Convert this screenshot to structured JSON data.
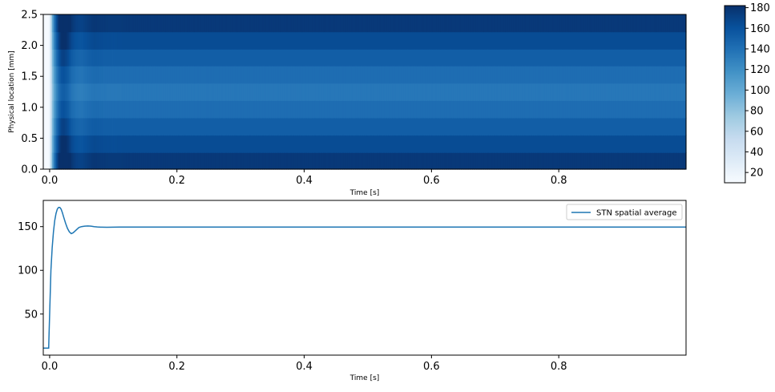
{
  "chart_data": [
    {
      "type": "heatmap",
      "title": "",
      "xlabel": "Time [s]",
      "ylabel": "Physical location [mm]",
      "xlim": [
        -0.01,
        1.0
      ],
      "ylim": [
        0.0,
        2.5
      ],
      "xticks": [
        0.0,
        0.2,
        0.4,
        0.6,
        0.8
      ],
      "xtick_labels": [
        "0.0",
        "0.2",
        "0.4",
        "0.6",
        "0.8"
      ],
      "yticks": [
        0.0,
        0.5,
        1.0,
        1.5,
        2.0,
        2.5
      ],
      "ytick_labels": [
        "0.0",
        "0.5",
        "1.0",
        "1.5",
        "2.0",
        "2.5"
      ],
      "colormap": "Blues",
      "colorbar": {
        "min": 10,
        "max": 182,
        "ticks": [
          20,
          40,
          60,
          80,
          100,
          120,
          140,
          160,
          180
        ],
        "tick_labels": [
          "20",
          "40",
          "60",
          "80",
          "100",
          "120",
          "140",
          "160",
          "180"
        ]
      },
      "rows": {
        "y_edges": [
          0.0,
          0.27,
          0.55,
          0.83,
          1.11,
          1.39,
          1.67,
          1.94,
          2.22,
          2.5
        ],
        "steady_values": [
          176,
          164,
          152,
          142,
          135,
          142,
          152,
          164,
          176
        ]
      },
      "time_profile": {
        "t": [
          -0.01,
          -0.002,
          0.0,
          0.002,
          0.004,
          0.007,
          0.01,
          0.014,
          0.018,
          0.022,
          0.028,
          0.035,
          0.042,
          0.05,
          0.06,
          0.07,
          0.085,
          0.1,
          0.12,
          1.0
        ],
        "scale": [
          0.0,
          0.0,
          0.05,
          0.25,
          0.5,
          0.72,
          0.88,
          1.03,
          1.12,
          1.14,
          1.1,
          1.01,
          0.97,
          0.96,
          0.99,
          1.01,
          1.0,
          0.995,
          1.0,
          1.0
        ]
      }
    },
    {
      "type": "line",
      "title": "",
      "xlabel": "Time [s]",
      "ylabel": "",
      "xlim": [
        -0.01,
        1.0
      ],
      "ylim": [
        3,
        180
      ],
      "xticks": [
        0.0,
        0.2,
        0.4,
        0.6,
        0.8
      ],
      "xtick_labels": [
        "0.0",
        "0.2",
        "0.4",
        "0.6",
        "0.8"
      ],
      "yticks": [
        50,
        100,
        150
      ],
      "ytick_labels": [
        "50",
        "100",
        "150"
      ],
      "legend": "top-right",
      "series": [
        {
          "name": "STN spatial average",
          "color": "#1f77b4",
          "x": [
            -0.01,
            -0.0015,
            -0.0012,
            0.0,
            0.002,
            0.004,
            0.006,
            0.008,
            0.01,
            0.012,
            0.014,
            0.016,
            0.018,
            0.02,
            0.022,
            0.025,
            0.028,
            0.031,
            0.034,
            0.037,
            0.04,
            0.043,
            0.046,
            0.05,
            0.055,
            0.06,
            0.065,
            0.07,
            0.075,
            0.08,
            0.09,
            0.1,
            0.11,
            0.12,
            0.15,
            0.2,
            1.0
          ],
          "y": [
            11,
            11,
            20,
            50,
            100,
            126,
            144,
            157,
            165,
            170,
            172,
            172,
            170,
            166,
            161,
            154,
            148,
            144,
            142,
            143,
            145,
            147,
            149,
            150,
            150.5,
            150.8,
            150.5,
            150,
            149.6,
            149.4,
            149.3,
            149.4,
            149.5,
            149.5,
            149.5,
            149.5,
            149.5
          ]
        }
      ]
    }
  ]
}
